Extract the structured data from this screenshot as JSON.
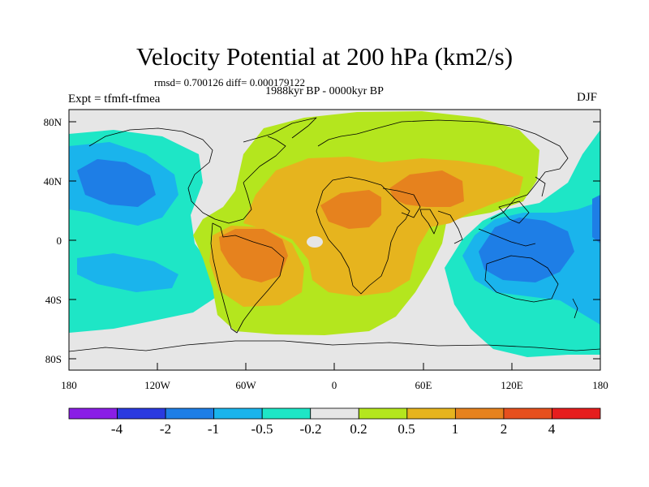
{
  "title": "Velocity Potential at 200 hPa (km2/s)",
  "stats": "rmsd= 0.700126 diff= 0.000179122",
  "period": "1988kyr BP - 0000kyr BP",
  "experiment": "Expt = tfmft-tfmea",
  "season": "DJF",
  "lat_labels": [
    "80N",
    "40N",
    "0",
    "40S",
    "80S"
  ],
  "lon_labels": [
    "180",
    "120W",
    "60W",
    "0",
    "60E",
    "120E",
    "180"
  ],
  "colorbar": {
    "colors": [
      "#8a1ee6",
      "#2a3ae0",
      "#1e7ee6",
      "#1ab4ec",
      "#1ee6c6",
      "#e6e6e6",
      "#b4e61e",
      "#e6b41e",
      "#e6821e",
      "#e6501e",
      "#e61e1e"
    ],
    "labels": [
      "-4",
      "-2",
      "-1",
      "-0.5",
      "-0.2",
      "0.2",
      "0.5",
      "1",
      "2",
      "4"
    ]
  },
  "colors": {
    "neutral": "#e6e6e6",
    "green": "#b4e61e",
    "yellow": "#e6b41e",
    "orange": "#e6821e",
    "teal": "#1ee6c6",
    "cyan": "#1ab4ec",
    "blue": "#1e7ee6"
  }
}
